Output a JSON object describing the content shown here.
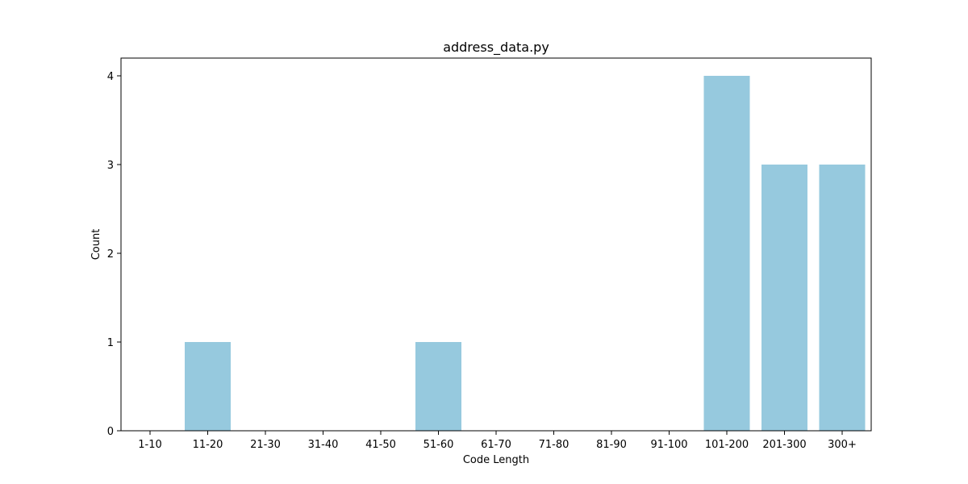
{
  "chart_data": {
    "type": "bar",
    "title": "address_data.py",
    "xlabel": "Code Length",
    "ylabel": "Count",
    "categories": [
      "1-10",
      "11-20",
      "21-30",
      "31-40",
      "41-50",
      "51-60",
      "61-70",
      "71-80",
      "81-90",
      "91-100",
      "101-200",
      "201-300",
      "300+"
    ],
    "values": [
      0,
      1,
      0,
      0,
      0,
      1,
      0,
      0,
      0,
      0,
      4,
      3,
      3
    ],
    "ylim": [
      0,
      4.2
    ],
    "yticks": [
      0,
      1,
      2,
      3,
      4
    ],
    "grid": false,
    "bar_color": "#96c9de"
  }
}
